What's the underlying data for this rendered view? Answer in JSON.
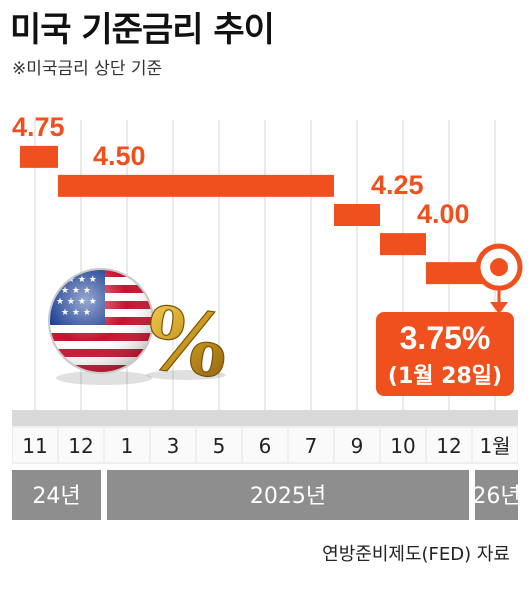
{
  "title": "미국 기준금리 추이",
  "subtitle": "※미국금리 상단 기준",
  "source": "연방준비제도(FED) 자료",
  "colors": {
    "line": "#f0501e",
    "grid": "#d4d4d4",
    "tick_bg": "#efefef",
    "year_bg": "#8e8e8e",
    "callout": "#f0501e"
  },
  "chart_data": {
    "type": "line",
    "step": true,
    "title": "미국 기준금리 추이",
    "subtitle": "※미국금리 상단 기준",
    "x": [
      "11",
      "12",
      "1",
      "3",
      "5",
      "6",
      "7",
      "9",
      "10",
      "12",
      "1월"
    ],
    "years": [
      {
        "label": "24년",
        "from": 0,
        "to": 1
      },
      {
        "label": "2025년",
        "from": 2,
        "to": 9
      },
      {
        "label": "26년",
        "from": 10,
        "to": 10
      }
    ],
    "values": [
      4.75,
      4.5,
      4.5,
      4.5,
      4.5,
      4.5,
      4.5,
      4.25,
      4.0,
      3.75,
      3.75
    ],
    "ylim": [
      3.7,
      4.8
    ],
    "step_labels": [
      {
        "text": "4.75",
        "at": 0
      },
      {
        "text": "4.50",
        "at": 1
      },
      {
        "text": "4.25",
        "at": 7
      },
      {
        "text": "4.00",
        "at": 8
      }
    ],
    "highlight": {
      "value": "3.75%",
      "note": "(1월 28일)",
      "at": 10
    },
    "grid": "vertical"
  }
}
